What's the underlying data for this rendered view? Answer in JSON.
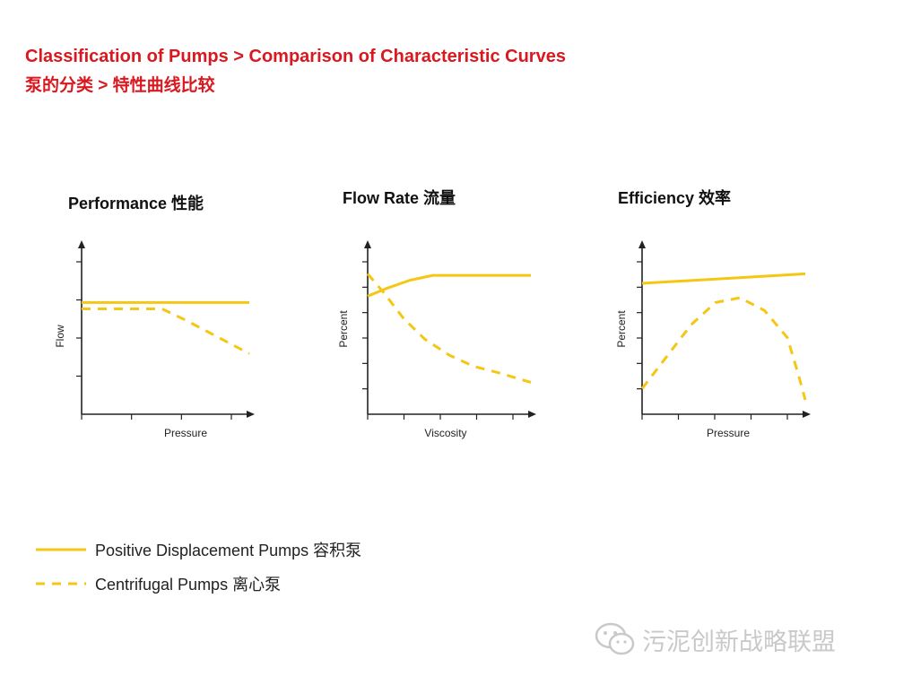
{
  "header": {
    "title_en": "Classification of Pumps > Comparison of Characteristic Curves",
    "title_cn": "泵的分类 > 特性曲线比较"
  },
  "colors": {
    "accent_red": "#d9181f",
    "series_yellow": "#f5c614",
    "axis": "#222222"
  },
  "chart_data": [
    {
      "type": "line",
      "title": "Performance 性能",
      "xlabel": "Pressure",
      "ylabel": "Flow",
      "xlim": [
        0,
        10
      ],
      "ylim": [
        0,
        10
      ],
      "x_ticks": 3,
      "y_ticks": 4,
      "series": [
        {
          "name": "Positive Displacement Pumps 容积泵",
          "style": "solid",
          "points": [
            [
              0,
              7.0
            ],
            [
              10,
              7.0
            ]
          ]
        },
        {
          "name": "Centrifugal Pumps 离心泵",
          "style": "dashed",
          "points": [
            [
              0,
              6.6
            ],
            [
              4.8,
              6.6
            ],
            [
              6.2,
              5.9
            ],
            [
              10,
              3.8
            ]
          ]
        }
      ]
    },
    {
      "type": "line",
      "title": "Flow Rate 流量",
      "xlabel": "Viscosity",
      "ylabel": "Percent",
      "xlim": [
        0,
        10
      ],
      "ylim": [
        0,
        10
      ],
      "x_ticks": 4,
      "y_ticks": 6,
      "series": [
        {
          "name": "Positive Displacement Pumps 容积泵",
          "style": "solid",
          "points": [
            [
              0,
              7.4
            ],
            [
              1.2,
              7.9
            ],
            [
              2.6,
              8.4
            ],
            [
              4.0,
              8.7
            ],
            [
              5.5,
              8.7
            ],
            [
              10,
              8.7
            ]
          ]
        },
        {
          "name": "Centrifugal Pumps 离心泵",
          "style": "dashed",
          "points": [
            [
              0,
              8.8
            ],
            [
              1.0,
              7.6
            ],
            [
              2.2,
              6.0
            ],
            [
              3.5,
              4.7
            ],
            [
              5.0,
              3.7
            ],
            [
              6.5,
              3.0
            ],
            [
              8.0,
              2.6
            ],
            [
              10,
              2.0
            ]
          ]
        }
      ]
    },
    {
      "type": "line",
      "title": "Efficiency 效率",
      "xlabel": "Pressure",
      "ylabel": "Percent",
      "xlim": [
        0,
        10
      ],
      "ylim": [
        0,
        10
      ],
      "x_ticks": 4,
      "y_ticks": 6,
      "series": [
        {
          "name": "Positive Displacement Pumps 容积泵",
          "style": "solid",
          "points": [
            [
              0,
              8.2
            ],
            [
              5,
              8.5
            ],
            [
              10,
              8.8
            ]
          ]
        },
        {
          "name": "Centrifugal Pumps 离心泵",
          "style": "dashed",
          "points": [
            [
              0,
              1.6
            ],
            [
              1.5,
              3.6
            ],
            [
              3.0,
              5.6
            ],
            [
              4.5,
              7.0
            ],
            [
              6.0,
              7.3
            ],
            [
              7.5,
              6.5
            ],
            [
              8.9,
              4.8
            ],
            [
              9.6,
              2.4
            ],
            [
              10,
              0.9
            ]
          ]
        }
      ]
    }
  ],
  "legend": {
    "solid_label": "Positive Displacement Pumps 容积泵",
    "dashed_label": "Centrifugal Pumps 离心泵"
  },
  "watermark": {
    "text": "污泥创新战略联盟",
    "icon": "wechat-icon"
  }
}
